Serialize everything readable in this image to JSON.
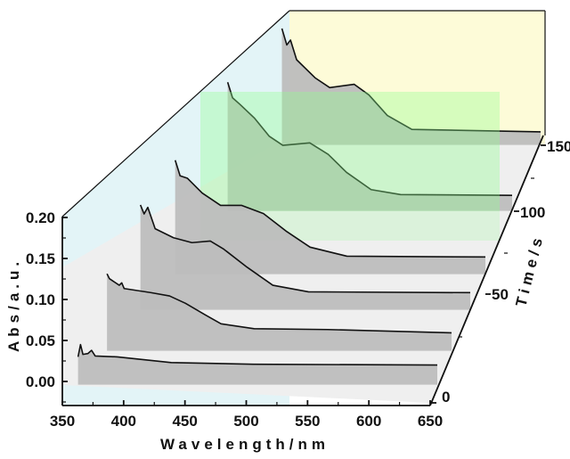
{
  "chart_data": {
    "type": "line",
    "style": "3d-waterfall",
    "xlabel": "Wavelength/nm",
    "ylabel": "Abs/a.u.",
    "zlabel": "Time/s",
    "xlim": [
      350,
      650
    ],
    "ylim": [
      -0.02,
      0.2
    ],
    "x_ticks": [
      "350",
      "400",
      "450",
      "500",
      "550",
      "600",
      "650"
    ],
    "y_ticks": [
      "0.00",
      "0.05",
      "0.10",
      "0.15",
      "0.20"
    ],
    "z_ticks": [
      "0",
      "50",
      "100",
      "150"
    ],
    "grid": false,
    "colors": {
      "fill": "#bdbdbd",
      "line": "#111111",
      "side_wall": "#e3f4f7",
      "back_wall": "#fdfbd8",
      "highlight_band": "#8cff8c",
      "floor": "#efefef"
    },
    "series": [
      {
        "points": [
          [
            357,
            0.03
          ],
          [
            359,
            0.045
          ],
          [
            361,
            0.033
          ],
          [
            365,
            0.034
          ],
          [
            368,
            0.038
          ],
          [
            371,
            0.031
          ],
          [
            389,
            0.03
          ],
          [
            433,
            0.023
          ],
          [
            500,
            0.021
          ],
          [
            650,
            0.02
          ]
        ]
      },
      {
        "points": [
          [
            369,
            0.09
          ],
          [
            371,
            0.084
          ],
          [
            379,
            0.076
          ],
          [
            381,
            0.079
          ],
          [
            383,
            0.072
          ],
          [
            405,
            0.067
          ],
          [
            420,
            0.063
          ],
          [
            433,
            0.054
          ],
          [
            449,
            0.04
          ],
          [
            462,
            0.029
          ],
          [
            489,
            0.023
          ],
          [
            549,
            0.022
          ],
          [
            650,
            0.018
          ]
        ]
      },
      {
        "points": [
          [
            381,
            0.124
          ],
          [
            384,
            0.113
          ],
          [
            387,
            0.121
          ],
          [
            393,
            0.095
          ],
          [
            408,
            0.084
          ],
          [
            423,
            0.078
          ],
          [
            438,
            0.08
          ],
          [
            449,
            0.07
          ],
          [
            468,
            0.048
          ],
          [
            489,
            0.026
          ],
          [
            518,
            0.018
          ],
          [
            650,
            0.017
          ]
        ]
      },
      {
        "points": [
          [
            397,
            0.135
          ],
          [
            401,
            0.116
          ],
          [
            407,
            0.113
          ],
          [
            419,
            0.095
          ],
          [
            434,
            0.08
          ],
          [
            451,
            0.08
          ],
          [
            469,
            0.07
          ],
          [
            488,
            0.048
          ],
          [
            507,
            0.029
          ],
          [
            537,
            0.018
          ],
          [
            650,
            0.017
          ]
        ]
      },
      {
        "points": [
          [
            418,
            0.153
          ],
          [
            422,
            0.134
          ],
          [
            428,
            0.126
          ],
          [
            440,
            0.109
          ],
          [
            452,
            0.087
          ],
          [
            463,
            0.076
          ],
          [
            485,
            0.079
          ],
          [
            500,
            0.065
          ],
          [
            515,
            0.043
          ],
          [
            535,
            0.022
          ],
          [
            559,
            0.016
          ],
          [
            650,
            0.015
          ]
        ]
      },
      {
        "points": [
          [
            439,
            0.138
          ],
          [
            443,
            0.118
          ],
          [
            446,
            0.124
          ],
          [
            451,
            0.1
          ],
          [
            466,
            0.078
          ],
          [
            478,
            0.066
          ],
          [
            498,
            0.07
          ],
          [
            510,
            0.057
          ],
          [
            525,
            0.032
          ],
          [
            545,
            0.015
          ],
          [
            650,
            0.012
          ]
        ]
      }
    ]
  }
}
